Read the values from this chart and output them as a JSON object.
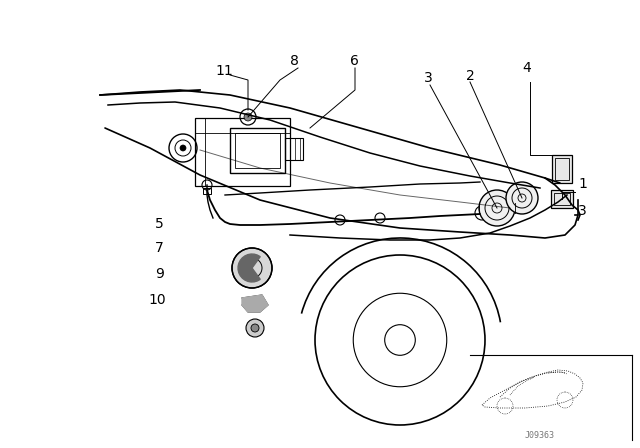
{
  "bg_color": "#ffffff",
  "line_color": "#000000",
  "text_color": "#000000",
  "fig_width": 6.4,
  "fig_height": 4.48,
  "dpi": 100,
  "watermark": "J09363"
}
